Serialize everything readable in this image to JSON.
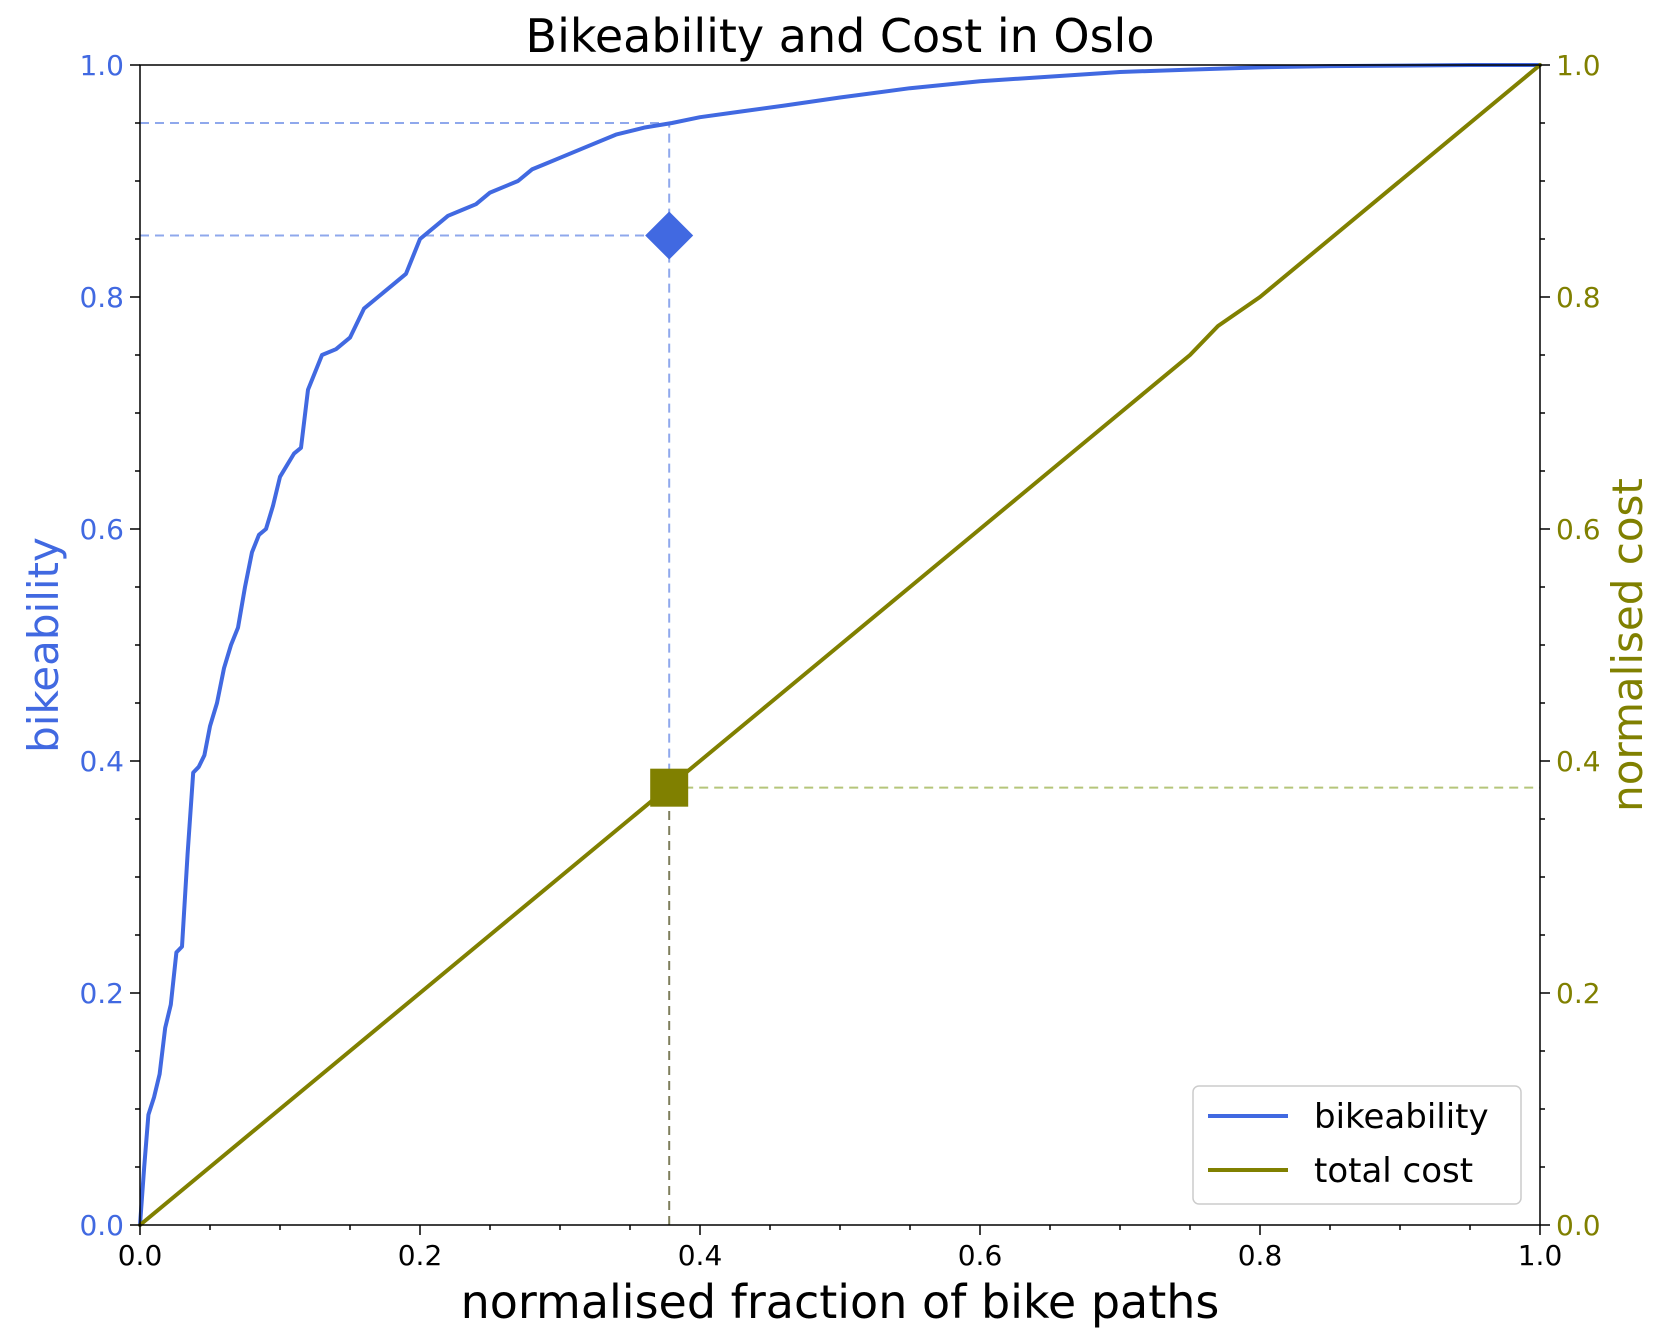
{
  "chart_data": {
    "type": "line",
    "title": "Bikeability and Cost in Oslo",
    "xlabel": "normalised fraction of bike paths",
    "ylabel_left": "bikeability",
    "ylabel_right": "normalised cost",
    "xlim": [
      0.0,
      1.0
    ],
    "ylim_left": [
      0.0,
      1.0
    ],
    "ylim_right": [
      0.0,
      1.0
    ],
    "x_ticks": [
      "0.0",
      "0.2",
      "0.4",
      "0.6",
      "0.8",
      "1.0"
    ],
    "y_left_ticks": [
      "0.0",
      "0.2",
      "0.4",
      "0.6",
      "0.8",
      "1.0"
    ],
    "y_right_ticks": [
      "0.0",
      "0.2",
      "0.4",
      "0.6",
      "0.8",
      "1.0"
    ],
    "legend_position": "lower right",
    "colors": {
      "bikeability": "#4169E1",
      "cost": "#808000",
      "bikeability_ref": "#8FA8EC",
      "cost_ref_h": "#B5C57A",
      "cost_ref_v": "#7E7E5C"
    },
    "series": [
      {
        "name": "bikeability",
        "axis": "left",
        "x": [
          0.0,
          0.003,
          0.006,
          0.01,
          0.014,
          0.018,
          0.022,
          0.026,
          0.03,
          0.034,
          0.038,
          0.042,
          0.046,
          0.05,
          0.055,
          0.06,
          0.065,
          0.07,
          0.075,
          0.08,
          0.085,
          0.09,
          0.095,
          0.1,
          0.105,
          0.11,
          0.115,
          0.12,
          0.13,
          0.14,
          0.15,
          0.16,
          0.17,
          0.18,
          0.19,
          0.2,
          0.21,
          0.22,
          0.23,
          0.24,
          0.25,
          0.26,
          0.27,
          0.28,
          0.29,
          0.3,
          0.32,
          0.34,
          0.36,
          0.38,
          0.4,
          0.43,
          0.46,
          0.5,
          0.55,
          0.6,
          0.65,
          0.7,
          0.75,
          0.8,
          0.85,
          0.9,
          0.95,
          1.0
        ],
        "values": [
          0.0,
          0.05,
          0.095,
          0.11,
          0.13,
          0.17,
          0.19,
          0.235,
          0.24,
          0.32,
          0.39,
          0.395,
          0.405,
          0.43,
          0.45,
          0.48,
          0.5,
          0.515,
          0.55,
          0.58,
          0.595,
          0.6,
          0.62,
          0.645,
          0.655,
          0.665,
          0.67,
          0.72,
          0.75,
          0.755,
          0.765,
          0.79,
          0.8,
          0.81,
          0.82,
          0.85,
          0.86,
          0.87,
          0.875,
          0.88,
          0.89,
          0.895,
          0.9,
          0.91,
          0.915,
          0.92,
          0.93,
          0.94,
          0.946,
          0.95,
          0.955,
          0.96,
          0.965,
          0.972,
          0.98,
          0.986,
          0.99,
          0.994,
          0.996,
          0.998,
          0.999,
          0.9995,
          1.0,
          1.0
        ]
      },
      {
        "name": "total cost",
        "axis": "right",
        "x": [
          0.0,
          0.05,
          0.1,
          0.15,
          0.2,
          0.25,
          0.3,
          0.35,
          0.378,
          0.4,
          0.45,
          0.5,
          0.55,
          0.6,
          0.65,
          0.7,
          0.75,
          0.77,
          0.8,
          0.85,
          0.9,
          0.95,
          1.0
        ],
        "values": [
          0.0,
          0.05,
          0.1,
          0.15,
          0.2,
          0.25,
          0.3,
          0.35,
          0.378,
          0.4,
          0.45,
          0.5,
          0.55,
          0.6,
          0.65,
          0.7,
          0.75,
          0.775,
          0.8,
          0.85,
          0.9,
          0.95,
          1.0
        ]
      }
    ],
    "markers": [
      {
        "shape": "diamond",
        "axis": "left",
        "x": 0.378,
        "y": 0.853
      },
      {
        "shape": "square",
        "axis": "right",
        "x": 0.378,
        "y": 0.377
      }
    ],
    "reference_lines": [
      {
        "kind": "hline",
        "axis": "left",
        "y": 0.95,
        "x_from": 0.0,
        "x_to": 0.378,
        "color_key": "bikeability_ref"
      },
      {
        "kind": "hline",
        "axis": "left",
        "y": 0.853,
        "x_from": 0.0,
        "x_to": 0.378,
        "color_key": "bikeability_ref"
      },
      {
        "kind": "vline",
        "axis": "left",
        "x": 0.378,
        "y_from": 0.377,
        "y_to": 0.95,
        "color_key": "bikeability_ref"
      },
      {
        "kind": "vline",
        "axis": "right",
        "x": 0.378,
        "y_from": 0.0,
        "y_to": 0.377,
        "color_key": "cost_ref_v"
      },
      {
        "kind": "hline",
        "axis": "right",
        "y": 0.377,
        "x_from": 0.378,
        "x_to": 1.0,
        "color_key": "cost_ref_h"
      }
    ],
    "legend": [
      {
        "label": "bikeability",
        "color_key": "bikeability"
      },
      {
        "label": "total cost",
        "color_key": "cost"
      }
    ]
  }
}
